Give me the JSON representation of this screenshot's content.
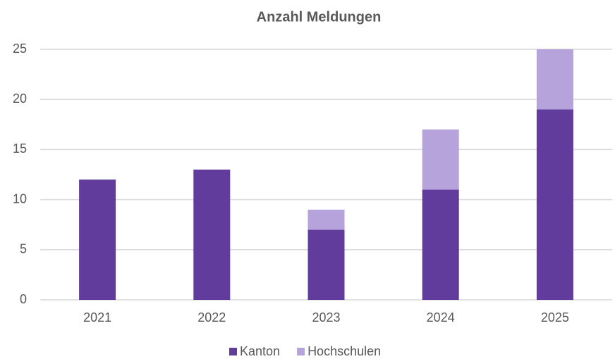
{
  "chart_data": {
    "type": "stacked_bar",
    "title": "Anzahl Meldungen",
    "categories": [
      "2021",
      "2022",
      "2023",
      "2024",
      "2025"
    ],
    "series": [
      {
        "name": "Kanton",
        "color": "#613c9c",
        "values": [
          12,
          13,
          7,
          11,
          19
        ]
      },
      {
        "name": "Hochschulen",
        "color": "#b7a3dc",
        "values": [
          0,
          0,
          2,
          6,
          6
        ]
      }
    ],
    "ylim": [
      0,
      25
    ],
    "yticks": [
      0,
      5,
      10,
      15,
      20,
      25
    ],
    "grid": true,
    "legend": "bottom"
  }
}
